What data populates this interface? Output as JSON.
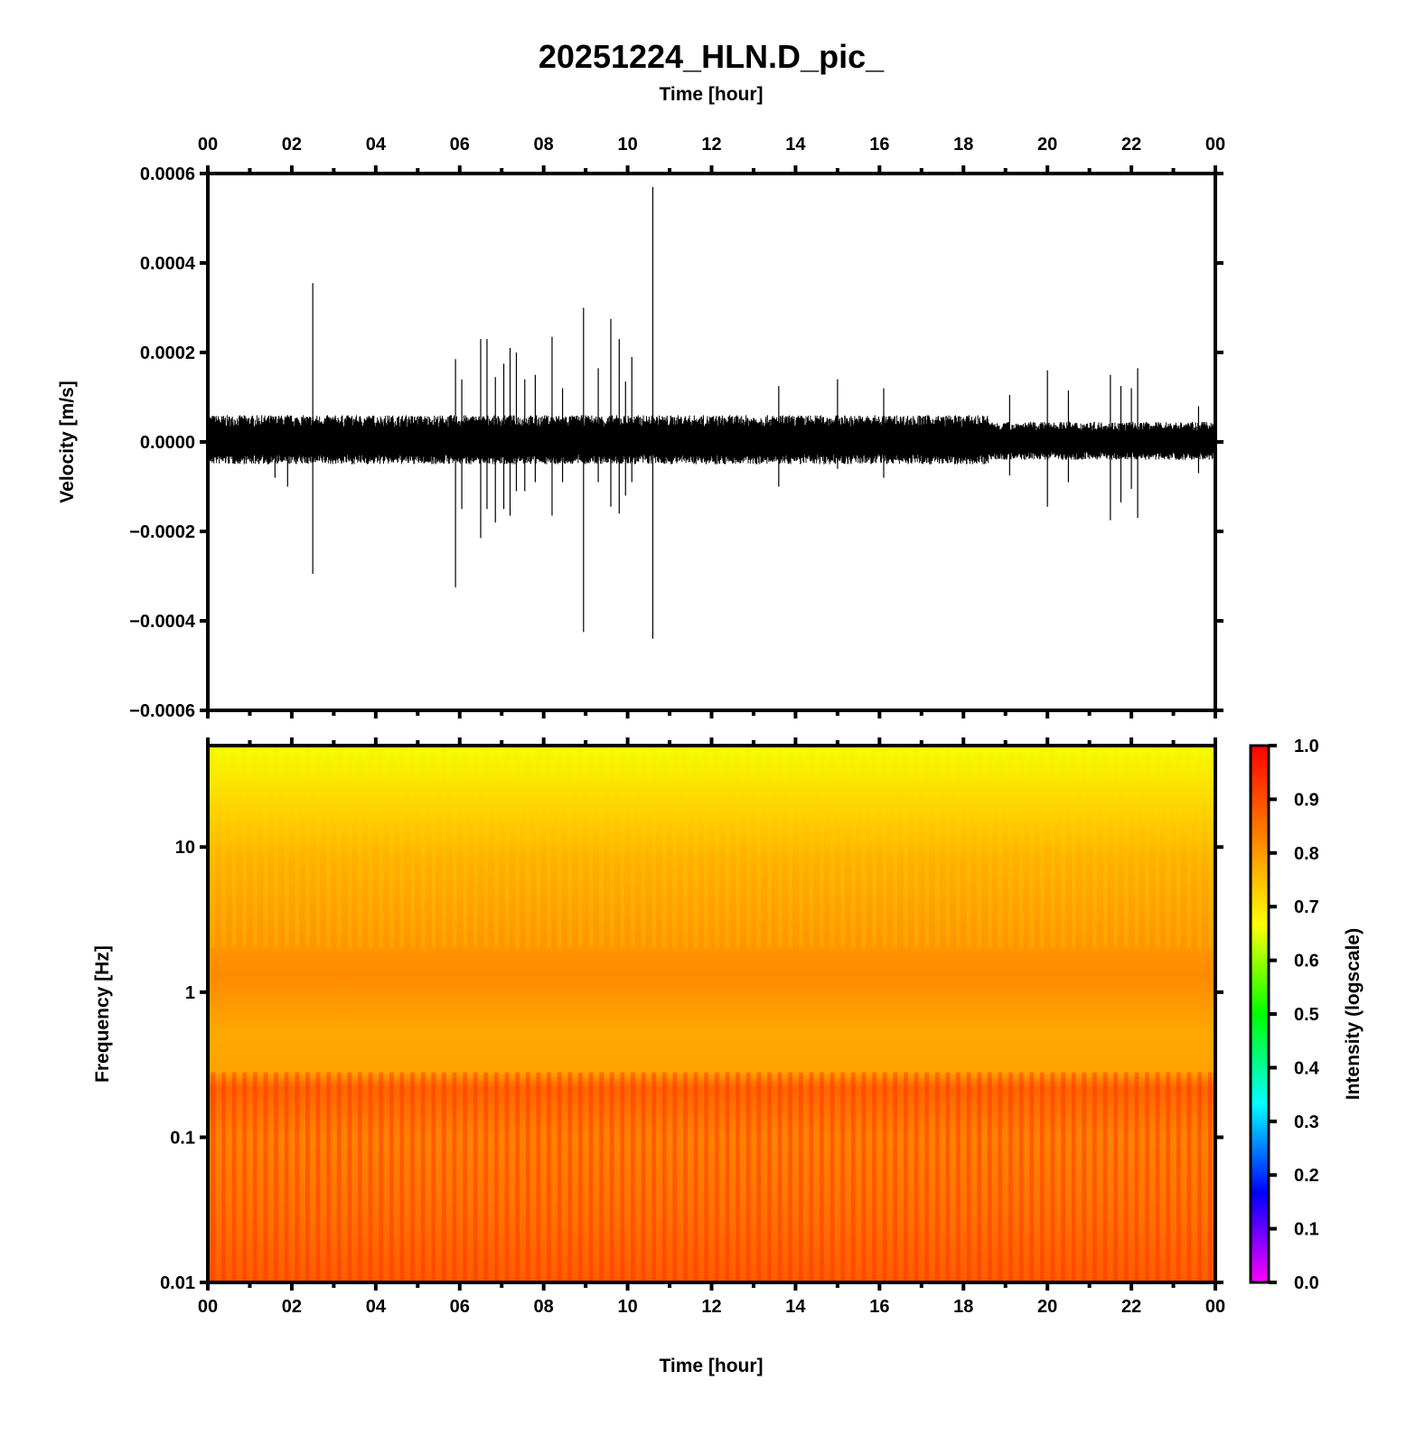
{
  "chart_data": [
    {
      "type": "line",
      "title": "20251224_HLN.D_pic_",
      "xlabel": "Time [hour]",
      "ylabel": "Velocity [m/s]",
      "xlim": [
        0,
        24
      ],
      "ylim": [
        -0.0006,
        0.0006
      ],
      "x_ticks": [
        "00",
        "02",
        "04",
        "06",
        "08",
        "10",
        "12",
        "14",
        "16",
        "18",
        "20",
        "22",
        "00"
      ],
      "y_ticks": [
        "0.0006",
        "0.0004",
        "0.0002",
        "0.0000",
        "−0.0002",
        "−0.0004",
        "−0.0006"
      ],
      "grid": false,
      "series": [
        {
          "background_amplitude": [
            {
              "x_range": [
                0,
                18.6
              ],
              "upper": 6e-05,
              "lower": -5e-05
            },
            {
              "x_range": [
                18.6,
                24
              ],
              "upper": 4.5e-05,
              "lower": -4e-05
            }
          ],
          "spikes": [
            {
              "x": 2.5,
              "max": 0.000355,
              "min": -0.000295
            },
            {
              "x": 1.9,
              "max": 6e-05,
              "min": -0.0001
            },
            {
              "x": 1.6,
              "max": 5e-05,
              "min": -8e-05
            },
            {
              "x": 5.9,
              "max": 0.000185,
              "min": -0.000325
            },
            {
              "x": 6.05,
              "max": 0.00014,
              "min": -0.00015
            },
            {
              "x": 6.5,
              "max": 0.00023,
              "min": -0.000215
            },
            {
              "x": 6.65,
              "max": 0.00023,
              "min": -0.00015
            },
            {
              "x": 6.85,
              "max": 0.000145,
              "min": -0.00018
            },
            {
              "x": 7.05,
              "max": 0.000175,
              "min": -0.00015
            },
            {
              "x": 7.2,
              "max": 0.00021,
              "min": -0.000165
            },
            {
              "x": 7.35,
              "max": 0.0002,
              "min": -0.00011
            },
            {
              "x": 7.55,
              "max": 0.00014,
              "min": -0.00011
            },
            {
              "x": 7.8,
              "max": 0.00015,
              "min": -9e-05
            },
            {
              "x": 8.2,
              "max": 0.000235,
              "min": -0.000165
            },
            {
              "x": 8.45,
              "max": 0.00012,
              "min": -9e-05
            },
            {
              "x": 8.95,
              "max": 0.0003,
              "min": -0.000425
            },
            {
              "x": 9.3,
              "max": 0.000165,
              "min": -9e-05
            },
            {
              "x": 9.6,
              "max": 0.000275,
              "min": -0.000145
            },
            {
              "x": 9.8,
              "max": 0.00023,
              "min": -0.00016
            },
            {
              "x": 9.95,
              "max": 0.000135,
              "min": -0.00012
            },
            {
              "x": 10.1,
              "max": 0.00019,
              "min": -9e-05
            },
            {
              "x": 10.6,
              "max": 0.00057,
              "min": -0.00044
            },
            {
              "x": 13.6,
              "max": 0.000125,
              "min": -0.0001
            },
            {
              "x": 15.0,
              "max": 0.00014,
              "min": -6e-05
            },
            {
              "x": 16.1,
              "max": 0.00012,
              "min": -8e-05
            },
            {
              "x": 19.1,
              "max": 0.000105,
              "min": -7.5e-05
            },
            {
              "x": 20.0,
              "max": 0.00016,
              "min": -0.000145
            },
            {
              "x": 20.5,
              "max": 0.000115,
              "min": -9e-05
            },
            {
              "x": 21.5,
              "max": 0.00015,
              "min": -0.000175
            },
            {
              "x": 21.75,
              "max": 0.000125,
              "min": -0.000135
            },
            {
              "x": 22.0,
              "max": 0.00012,
              "min": -0.000105
            },
            {
              "x": 22.15,
              "max": 0.000165,
              "min": -0.00017
            },
            {
              "x": 23.6,
              "max": 8e-05,
              "min": -7e-05
            }
          ]
        }
      ]
    },
    {
      "type": "heatmap",
      "xlabel": "Time [hour]",
      "ylabel": "Frequency [Hz]",
      "xlim": [
        0,
        24
      ],
      "ylim": [
        0.01,
        50
      ],
      "yscale": "log",
      "x_ticks": [
        "00",
        "02",
        "04",
        "06",
        "08",
        "10",
        "12",
        "14",
        "16",
        "18",
        "20",
        "22",
        "00"
      ],
      "y_ticks": [
        "10",
        "1",
        "0.1",
        "0.01"
      ],
      "colorbar": {
        "label": "Intensity (logscale)",
        "range": [
          0,
          1
        ],
        "ticks": [
          "1.0",
          "0.9",
          "0.8",
          "0.7",
          "0.6",
          "0.5",
          "0.4",
          "0.3",
          "0.2",
          "0.1",
          "0.0"
        ],
        "colors": [
          "#ff00ff",
          "#0000ff",
          "#00ffff",
          "#00ff00",
          "#ffff00",
          "#ff8000",
          "#ff0000"
        ]
      },
      "intensity_profile": [
        {
          "freq": 50,
          "value": 0.66
        },
        {
          "freq": 20,
          "value": 0.72
        },
        {
          "freq": 8,
          "value": 0.77
        },
        {
          "freq": 2.5,
          "value": 0.8
        },
        {
          "freq": 1.3,
          "value": 0.82
        },
        {
          "freq": 0.5,
          "value": 0.78
        },
        {
          "freq": 0.28,
          "value": 0.79
        },
        {
          "freq": 0.22,
          "value": 0.87
        },
        {
          "freq": 0.1,
          "value": 0.83
        },
        {
          "freq": 0.03,
          "value": 0.85
        },
        {
          "freq": 0.01,
          "value": 0.88
        }
      ],
      "stripe_count": 96
    }
  ]
}
